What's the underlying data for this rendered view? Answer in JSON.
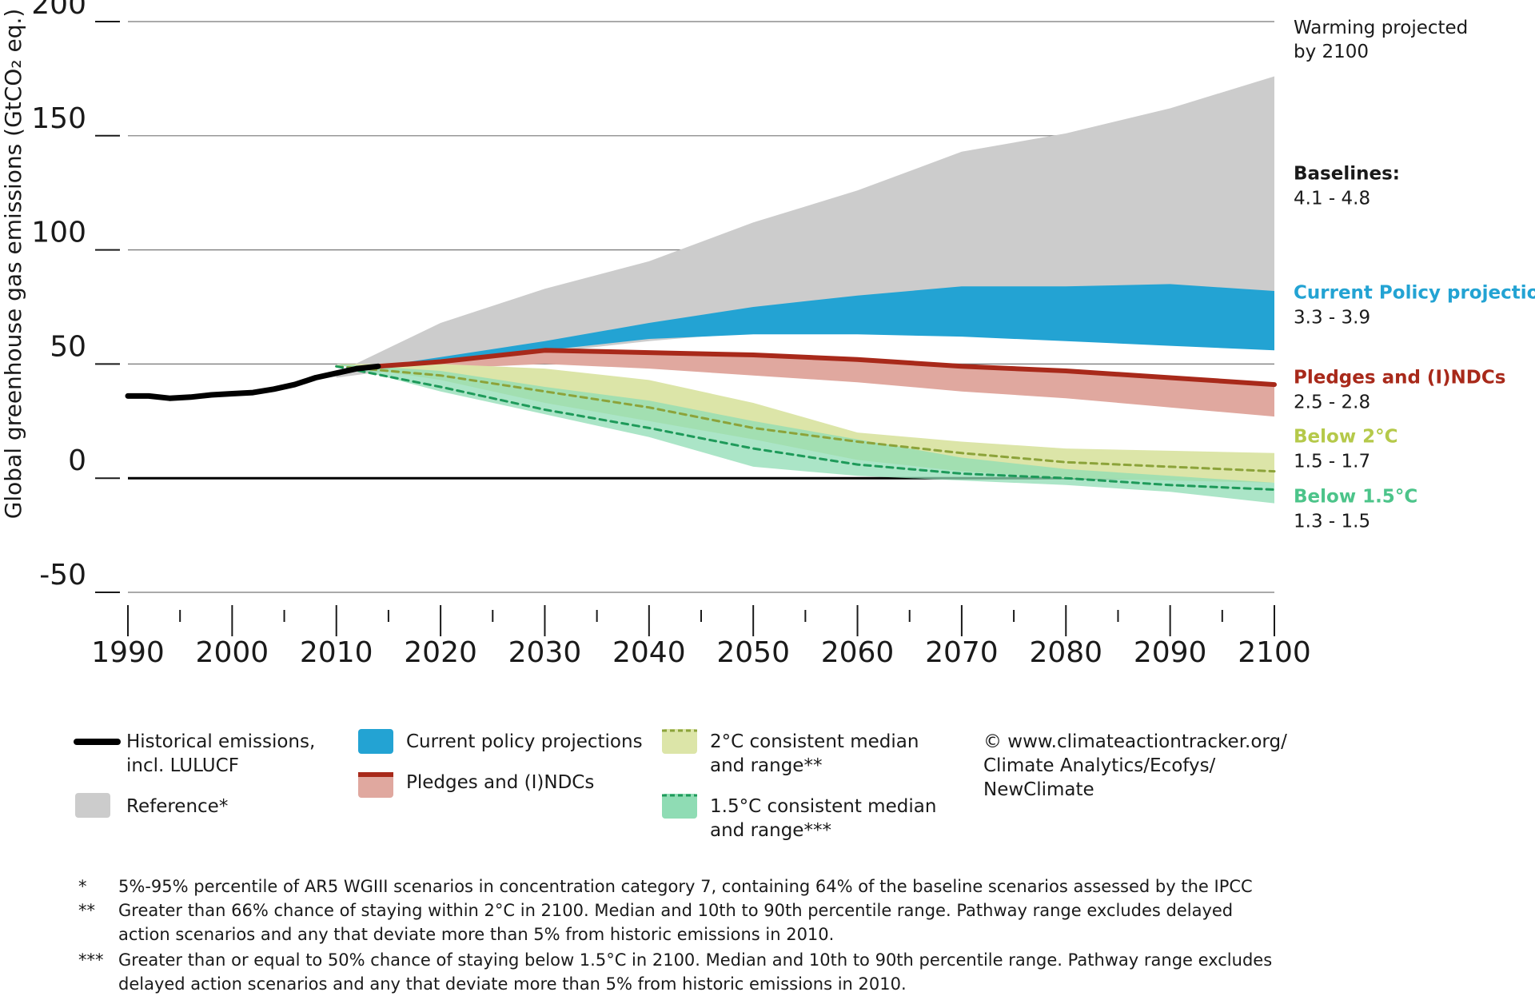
{
  "chart_data": {
    "type": "line",
    "y_label": "Global greenhouse gas emissions (GtCO₂ eq.)",
    "xlim": [
      1990,
      2100
    ],
    "ylim": [
      -50,
      200
    ],
    "xticks": [
      1990,
      2000,
      2010,
      2020,
      2030,
      2040,
      2050,
      2060,
      2070,
      2080,
      2090,
      2100
    ],
    "xminorticks": [
      1995,
      2005,
      2015,
      2025,
      2035,
      2045,
      2055,
      2065,
      2075,
      2085,
      2095
    ],
    "yticks": [
      -50,
      0,
      50,
      100,
      150,
      200
    ],
    "grid": true,
    "warming_heading": "Warming projected by 2100",
    "series": [
      {
        "name": "Historical emissions, incl. LULUCF",
        "type": "line",
        "color": "#000000",
        "x": [
          1990,
          1992,
          1994,
          1996,
          1998,
          2000,
          2002,
          2004,
          2006,
          2008,
          2010,
          2012,
          2014
        ],
        "values": [
          36,
          36,
          35,
          35.5,
          36.5,
          37,
          37.5,
          39,
          41,
          44,
          46,
          48,
          49
        ]
      },
      {
        "name": "Reference*",
        "type": "band",
        "color": "#cccccc",
        "label": "Baselines:",
        "warming": "4.1 - 4.8",
        "label_color": "#1a1a1a",
        "x": [
          2010,
          2020,
          2030,
          2040,
          2050,
          2060,
          2070,
          2080,
          2090,
          2100
        ],
        "lower": [
          44,
          50,
          55,
          60,
          64,
          66,
          70,
          73,
          78,
          82
        ],
        "upper": [
          46,
          68,
          83,
          95,
          112,
          126,
          143,
          151,
          162,
          176
        ]
      },
      {
        "name": "Current policy projections",
        "type": "band",
        "color": "#23a3d3",
        "label": "Current Policy projections",
        "warming": "3.3 - 3.9",
        "label_color": "#23a3d3",
        "x": [
          2014,
          2020,
          2030,
          2040,
          2050,
          2060,
          2070,
          2080,
          2090,
          2100
        ],
        "lower": [
          49,
          51,
          56,
          61,
          63,
          63,
          62,
          60,
          58,
          56
        ],
        "upper": [
          49,
          53,
          60,
          68,
          75,
          80,
          84,
          84,
          85,
          82
        ]
      },
      {
        "name": "Pledges and (I)NDCs",
        "type": "band",
        "color": "#e0a89f",
        "line_color": "#a8291a",
        "label": "Pledges and (I)NDCs",
        "warming": "2.5 - 2.8",
        "label_color": "#a8291a",
        "x": [
          2014,
          2020,
          2030,
          2040,
          2050,
          2060,
          2070,
          2080,
          2090,
          2100
        ],
        "lower": [
          49,
          48,
          50,
          48,
          45,
          42,
          38,
          35,
          31,
          27
        ],
        "upper": [
          49,
          52,
          56,
          55,
          54,
          52,
          49,
          47,
          44,
          41
        ],
        "values": [
          49,
          51,
          56,
          55,
          54,
          52,
          49,
          47,
          44,
          41
        ]
      },
      {
        "name": "2°C consistent median and range**",
        "type": "band",
        "color": "#dce5a8",
        "line_color": "#8ca33a",
        "dashed": true,
        "label": "Below 2°C",
        "warming": "1.5 - 1.7",
        "label_color": "#b5c94a",
        "x": [
          2010,
          2020,
          2030,
          2040,
          2050,
          2060,
          2070,
          2080,
          2090,
          2100
        ],
        "lower": [
          50,
          43,
          33,
          25,
          17,
          8,
          3,
          0,
          -1,
          -2
        ],
        "upper": [
          50,
          50,
          48,
          43,
          33,
          20,
          16,
          13,
          12,
          11
        ],
        "values": [
          49,
          45,
          38,
          31,
          22,
          16,
          11,
          7,
          5,
          3
        ]
      },
      {
        "name": "1.5°C consistent median and range***",
        "type": "band",
        "color": "#8fdcb4",
        "line_color": "#1e9a5a",
        "dashed": true,
        "label": "Below 1.5°C",
        "warming": "1.3 - 1.5",
        "label_color": "#4cc48a",
        "x": [
          2010,
          2020,
          2030,
          2040,
          2050,
          2060,
          2070,
          2080,
          2090,
          2100
        ],
        "lower": [
          50,
          38,
          28,
          18,
          5,
          1,
          -1,
          -3,
          -6,
          -11
        ],
        "upper": [
          50,
          47,
          40,
          34,
          25,
          17,
          9,
          4,
          1,
          -2
        ],
        "values": [
          49,
          40,
          30,
          22,
          13,
          6,
          2,
          0,
          -3,
          -5
        ]
      }
    ],
    "source": [
      "© www.climateactiontracker.org/",
      "Climate Analytics/Ecofys/",
      "NewClimate"
    ],
    "footnotes": [
      {
        "mark": "*",
        "text": "5%-95% percentile of AR5 WGIII scenarios in concentration category 7, containing 64% of the baseline scenarios assessed by the IPCC"
      },
      {
        "mark": "**",
        "text": "Greater than 66% chance of staying within 2°C in 2100. Median and 10th to 90th percentile range. Pathway range excludes delayed action scenarios and any that deviate more than 5% from historic emissions in 2010."
      },
      {
        "mark": "***",
        "text": "Greater than or equal to 50% chance of staying below 1.5°C in 2100. Median and 10th to 90th percentile range. Pathway range excludes delayed action scenarios and any that deviate more than 5% from historic emissions in 2010."
      }
    ]
  }
}
